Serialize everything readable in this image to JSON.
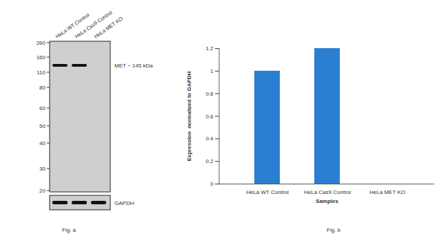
{
  "blot": {
    "caption": "Fig. a",
    "lanes": [
      "HeLa WT Control",
      "HeLa Cas9 Control",
      "HeLa MET KO"
    ],
    "markers": [
      260,
      160,
      110,
      80,
      60,
      50,
      40,
      30,
      20
    ],
    "band_label": "MET ~ 145 kDa",
    "band_present": [
      true,
      true,
      false
    ],
    "loading_label": "GAPDH",
    "loading_present": [
      true,
      true,
      true
    ]
  },
  "chart_data": {
    "type": "bar",
    "caption": "Fig. b",
    "xlabel": "Samples",
    "ylabel": "Expression  normalized to GAPDH",
    "categories": [
      "HeLa WT Control",
      "HeLa Cas9 Control",
      "HeLa MET KO"
    ],
    "values": [
      1,
      1.2,
      0
    ],
    "color": "#2b7fd3",
    "ylim": [
      0,
      1.2
    ],
    "yticks": [
      0,
      0.2,
      0.4,
      0.6,
      0.8,
      1,
      1.2
    ],
    "grid": false
  }
}
